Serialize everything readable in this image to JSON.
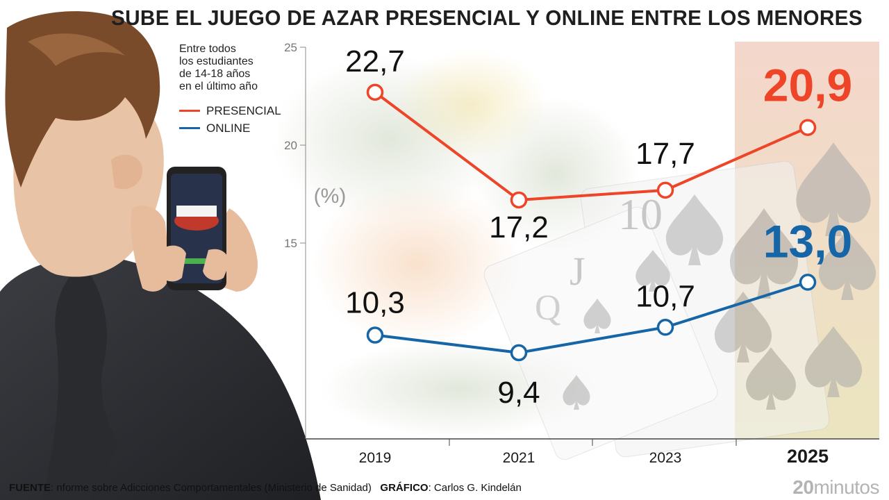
{
  "title": "SUBE EL JUEGO DE AZAR PRESENCIAL Y ONLINE ENTRE LOS MENORES",
  "subtitle_lines": [
    "Entre todos",
    "los estudiantes",
    "de 14-18 años",
    "en el último año"
  ],
  "legend": [
    {
      "label": "PRESENCIAL",
      "color": "#ee4427"
    },
    {
      "label": "ONLINE",
      "color": "#1565a7"
    }
  ],
  "footer": {
    "source_label": "FUENTE",
    "source_text": ": nforme sobre Adicciones Comportamentales (Ministerio de Sanidad)",
    "graphic_label": "GRÁFICO",
    "graphic_text": ": Carlos G. Kindelán"
  },
  "logo": {
    "number": "20",
    "word": "minutos"
  },
  "colors": {
    "presencial": "#ee4427",
    "online": "#1565a7",
    "highlight": "#f3d6cc",
    "axis": "#555555"
  },
  "chart_data": {
    "type": "line",
    "title": "SUBE EL JUEGO DE AZAR PRESENCIAL Y ONLINE ENTRE LOS MENORES",
    "categories": [
      "2019",
      "2021",
      "2023",
      "2025"
    ],
    "highlight_category": "2025",
    "ylabel": "(%)",
    "ylim": [
      5,
      25
    ],
    "yticks": [
      "25",
      "20",
      "15"
    ],
    "grid": false,
    "legend_position": "top-left",
    "series": [
      {
        "name": "PRESENCIAL",
        "values": [
          22.7,
          17.2,
          17.7,
          20.9
        ],
        "labels": [
          "22,7",
          "17,2",
          "17,7",
          "20,9"
        ]
      },
      {
        "name": "ONLINE",
        "values": [
          10.3,
          9.4,
          10.7,
          13.0
        ],
        "labels": [
          "10,3",
          "9,4",
          "10,7",
          "13,0"
        ]
      }
    ]
  }
}
